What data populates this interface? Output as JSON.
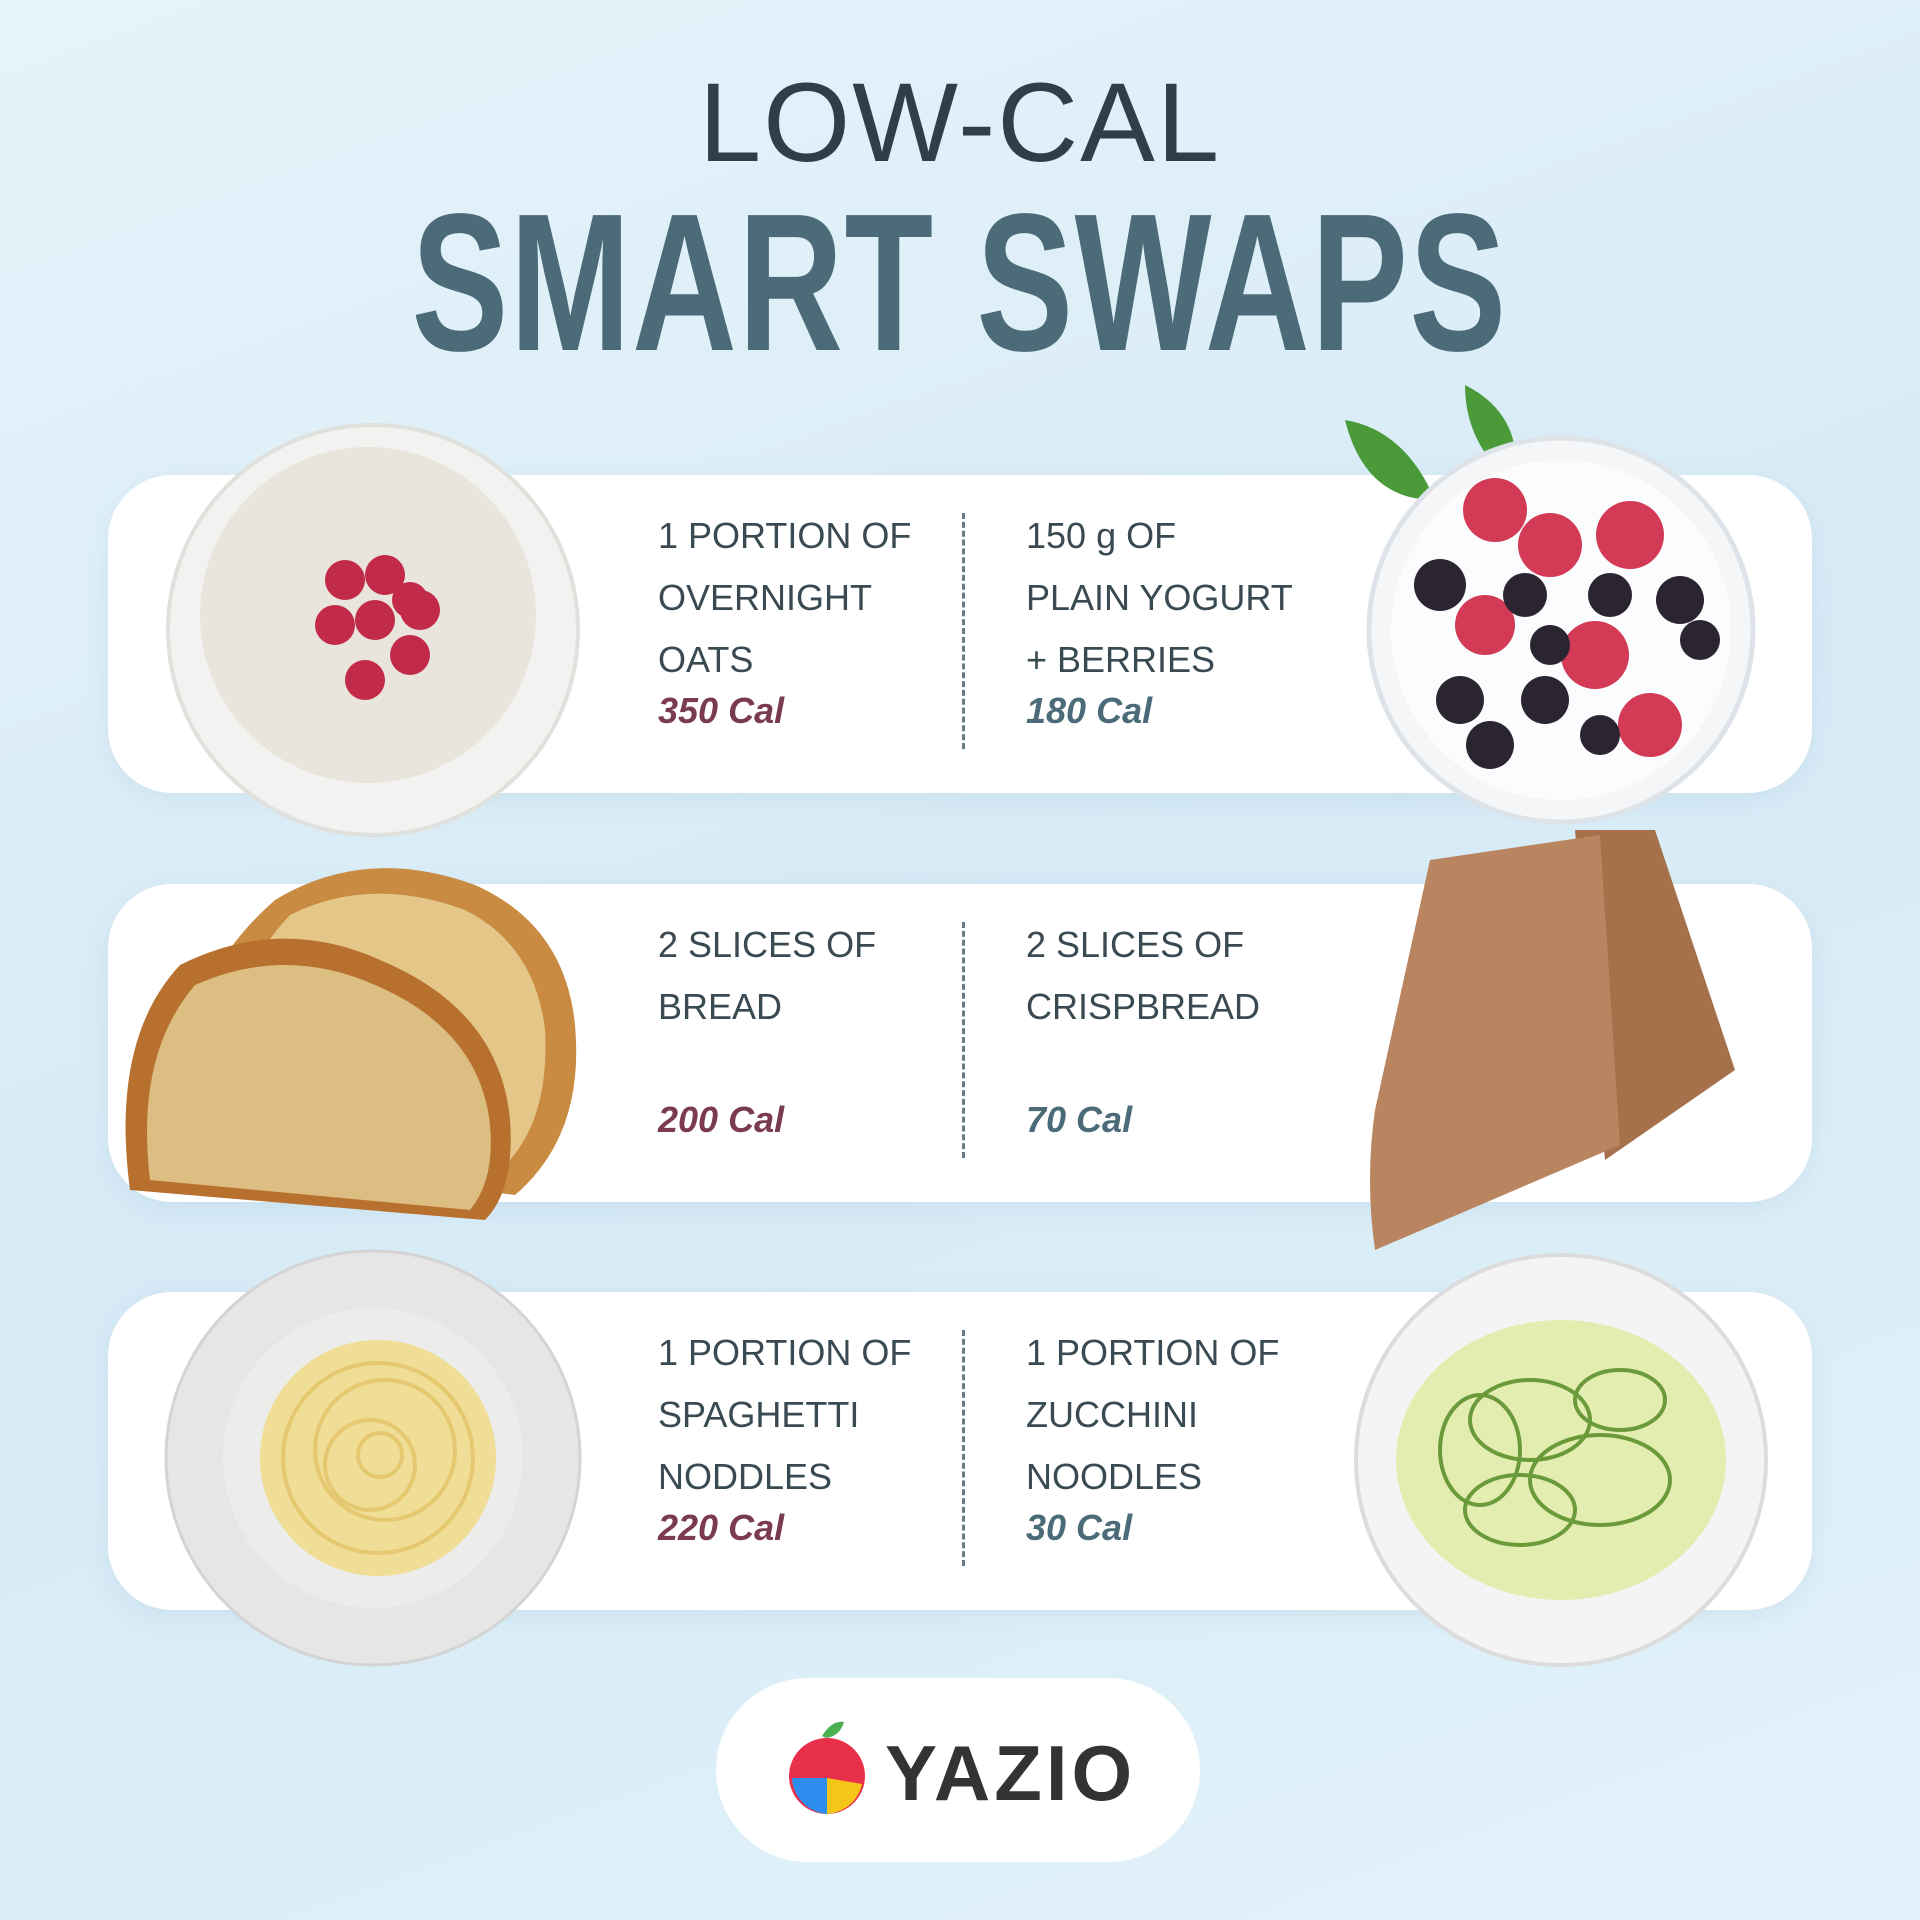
{
  "header": {
    "title_line1": "LOW-CAL",
    "title_line2": "SMART SWAPS"
  },
  "swaps": [
    {
      "original": {
        "lines": [
          "1 PORTION OF",
          "OVERNIGHT",
          "OATS"
        ],
        "calories": "350 Cal"
      },
      "swap": {
        "lines": [
          "150 g OF",
          "PLAIN YOGURT",
          "+ BERRIES"
        ],
        "calories": "180 Cal"
      }
    },
    {
      "original": {
        "lines": [
          "2 SLICES OF",
          "BREAD"
        ],
        "calories": "200 Cal"
      },
      "swap": {
        "lines": [
          "2 SLICES OF",
          "CRISPBREAD"
        ],
        "calories": "70 Cal"
      }
    },
    {
      "original": {
        "lines": [
          "1 PORTION OF",
          "SPAGHETTI",
          "NODDLES"
        ],
        "calories": "220 Cal"
      },
      "swap": {
        "lines": [
          "1 PORTION OF",
          "ZUCCHINI",
          "NOODLES"
        ],
        "calories": "30 Cal"
      }
    }
  ],
  "logo": {
    "text": "YAZIO"
  }
}
